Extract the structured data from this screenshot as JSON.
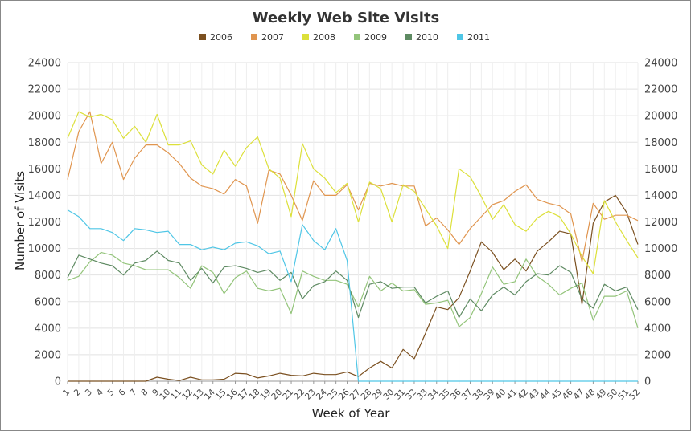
{
  "chart_data": {
    "type": "line",
    "title": "Weekly Web Site Visits",
    "xlabel": "Week of Year",
    "ylabel": "Number of Visits",
    "ylim": [
      0,
      24000
    ],
    "yticks": [
      0,
      2000,
      4000,
      6000,
      8000,
      10000,
      12000,
      14000,
      16000,
      18000,
      20000,
      22000,
      24000
    ],
    "grid": true,
    "legend_position": "top",
    "categories": [
      "1",
      "2",
      "3",
      "4",
      "5",
      "6",
      "7",
      "8",
      "9",
      "10",
      "11",
      "12",
      "13",
      "14",
      "15",
      "16",
      "17",
      "18",
      "19",
      "20",
      "21",
      "22",
      "23",
      "24",
      "25",
      "26",
      "27",
      "28",
      "29",
      "30",
      "31",
      "32",
      "33",
      "34",
      "35",
      "36",
      "37",
      "38",
      "39",
      "40",
      "41",
      "42",
      "43",
      "44",
      "45",
      "46",
      "47",
      "48",
      "49",
      "50",
      "51",
      "52"
    ],
    "series": [
      {
        "name": "2006",
        "color": "#7b5020",
        "values": [
          0,
          0,
          0,
          0,
          0,
          0,
          0,
          0,
          300,
          150,
          50,
          300,
          100,
          100,
          150,
          600,
          550,
          250,
          400,
          600,
          450,
          400,
          600,
          500,
          500,
          700,
          350,
          1000,
          1500,
          1000,
          2400,
          1700,
          3600,
          5600,
          5400,
          6300,
          8300,
          10500,
          9700,
          8400,
          9200,
          8300,
          9800,
          10500,
          11300,
          11100,
          5800,
          11900,
          13500,
          14000,
          12700,
          10300
        ]
      },
      {
        "name": "2007",
        "color": "#e0954f",
        "values": [
          15200,
          18800,
          20300,
          16400,
          18000,
          15200,
          16800,
          17800,
          17800,
          17200,
          16400,
          15300,
          14700,
          14500,
          14100,
          15200,
          14700,
          11900,
          15900,
          15600,
          14000,
          12100,
          15100,
          14000,
          14000,
          14800,
          12900,
          14900,
          14700,
          14900,
          14700,
          14700,
          11700,
          12300,
          11400,
          10300,
          11500,
          12400,
          13300,
          13600,
          14300,
          14800,
          13700,
          13400,
          13200,
          12600,
          9000,
          13400,
          12200,
          12500,
          12500,
          12100
        ]
      },
      {
        "name": "2008",
        "color": "#dce03a",
        "values": [
          18300,
          20300,
          19900,
          20100,
          19700,
          18300,
          19200,
          18000,
          20100,
          17800,
          17800,
          18100,
          16300,
          15600,
          17400,
          16200,
          17600,
          18400,
          16000,
          15300,
          12400,
          17900,
          16000,
          15300,
          14200,
          14900,
          12000,
          15000,
          14500,
          12000,
          14800,
          14300,
          13000,
          11700,
          10000,
          16000,
          15400,
          13900,
          12200,
          13300,
          11800,
          11300,
          12300,
          12800,
          12400,
          11100,
          9400,
          8100,
          13600,
          12000,
          10600,
          9300
        ]
      },
      {
        "name": "2009",
        "color": "#93c47a",
        "values": [
          7600,
          7900,
          9000,
          9700,
          9500,
          8900,
          8700,
          8400,
          8400,
          8400,
          7800,
          7000,
          8700,
          8200,
          6600,
          7800,
          8300,
          7000,
          6800,
          7000,
          5100,
          8300,
          7900,
          7600,
          7600,
          7300,
          5600,
          7900,
          6800,
          7400,
          6800,
          6900,
          5800,
          5900,
          6100,
          4100,
          4800,
          6600,
          8600,
          7300,
          7500,
          9200,
          7900,
          7300,
          6500,
          7000,
          7400,
          4600,
          6400,
          6400,
          6800,
          4000
        ]
      },
      {
        "name": "2010",
        "color": "#5e8a62",
        "values": [
          7800,
          9500,
          9200,
          8900,
          8700,
          8000,
          8900,
          9100,
          9800,
          9100,
          8900,
          7600,
          8500,
          7400,
          8600,
          8700,
          8500,
          8200,
          8400,
          7600,
          8200,
          6200,
          7200,
          7500,
          8300,
          7600,
          4800,
          7300,
          7500,
          7000,
          7100,
          7100,
          5900,
          6400,
          6800,
          4800,
          6200,
          5300,
          6500,
          7100,
          6500,
          7500,
          8100,
          8000,
          8700,
          8200,
          6200,
          5500,
          7300,
          6800,
          7100,
          5400
        ]
      },
      {
        "name": "2011",
        "color": "#4fc6e6",
        "values": [
          12900,
          12400,
          11500,
          11500,
          11200,
          10600,
          11500,
          11400,
          11200,
          11300,
          10300,
          10300,
          9900,
          10100,
          9900,
          10400,
          10500,
          10200,
          9600,
          9800,
          7500,
          11800,
          10600,
          9900,
          11500,
          9100,
          0,
          0,
          0,
          0,
          0,
          0,
          0,
          0,
          0,
          0,
          0,
          0,
          0,
          0,
          0,
          0,
          0,
          0,
          0,
          0,
          0,
          0,
          0,
          0,
          0,
          0
        ]
      }
    ]
  }
}
